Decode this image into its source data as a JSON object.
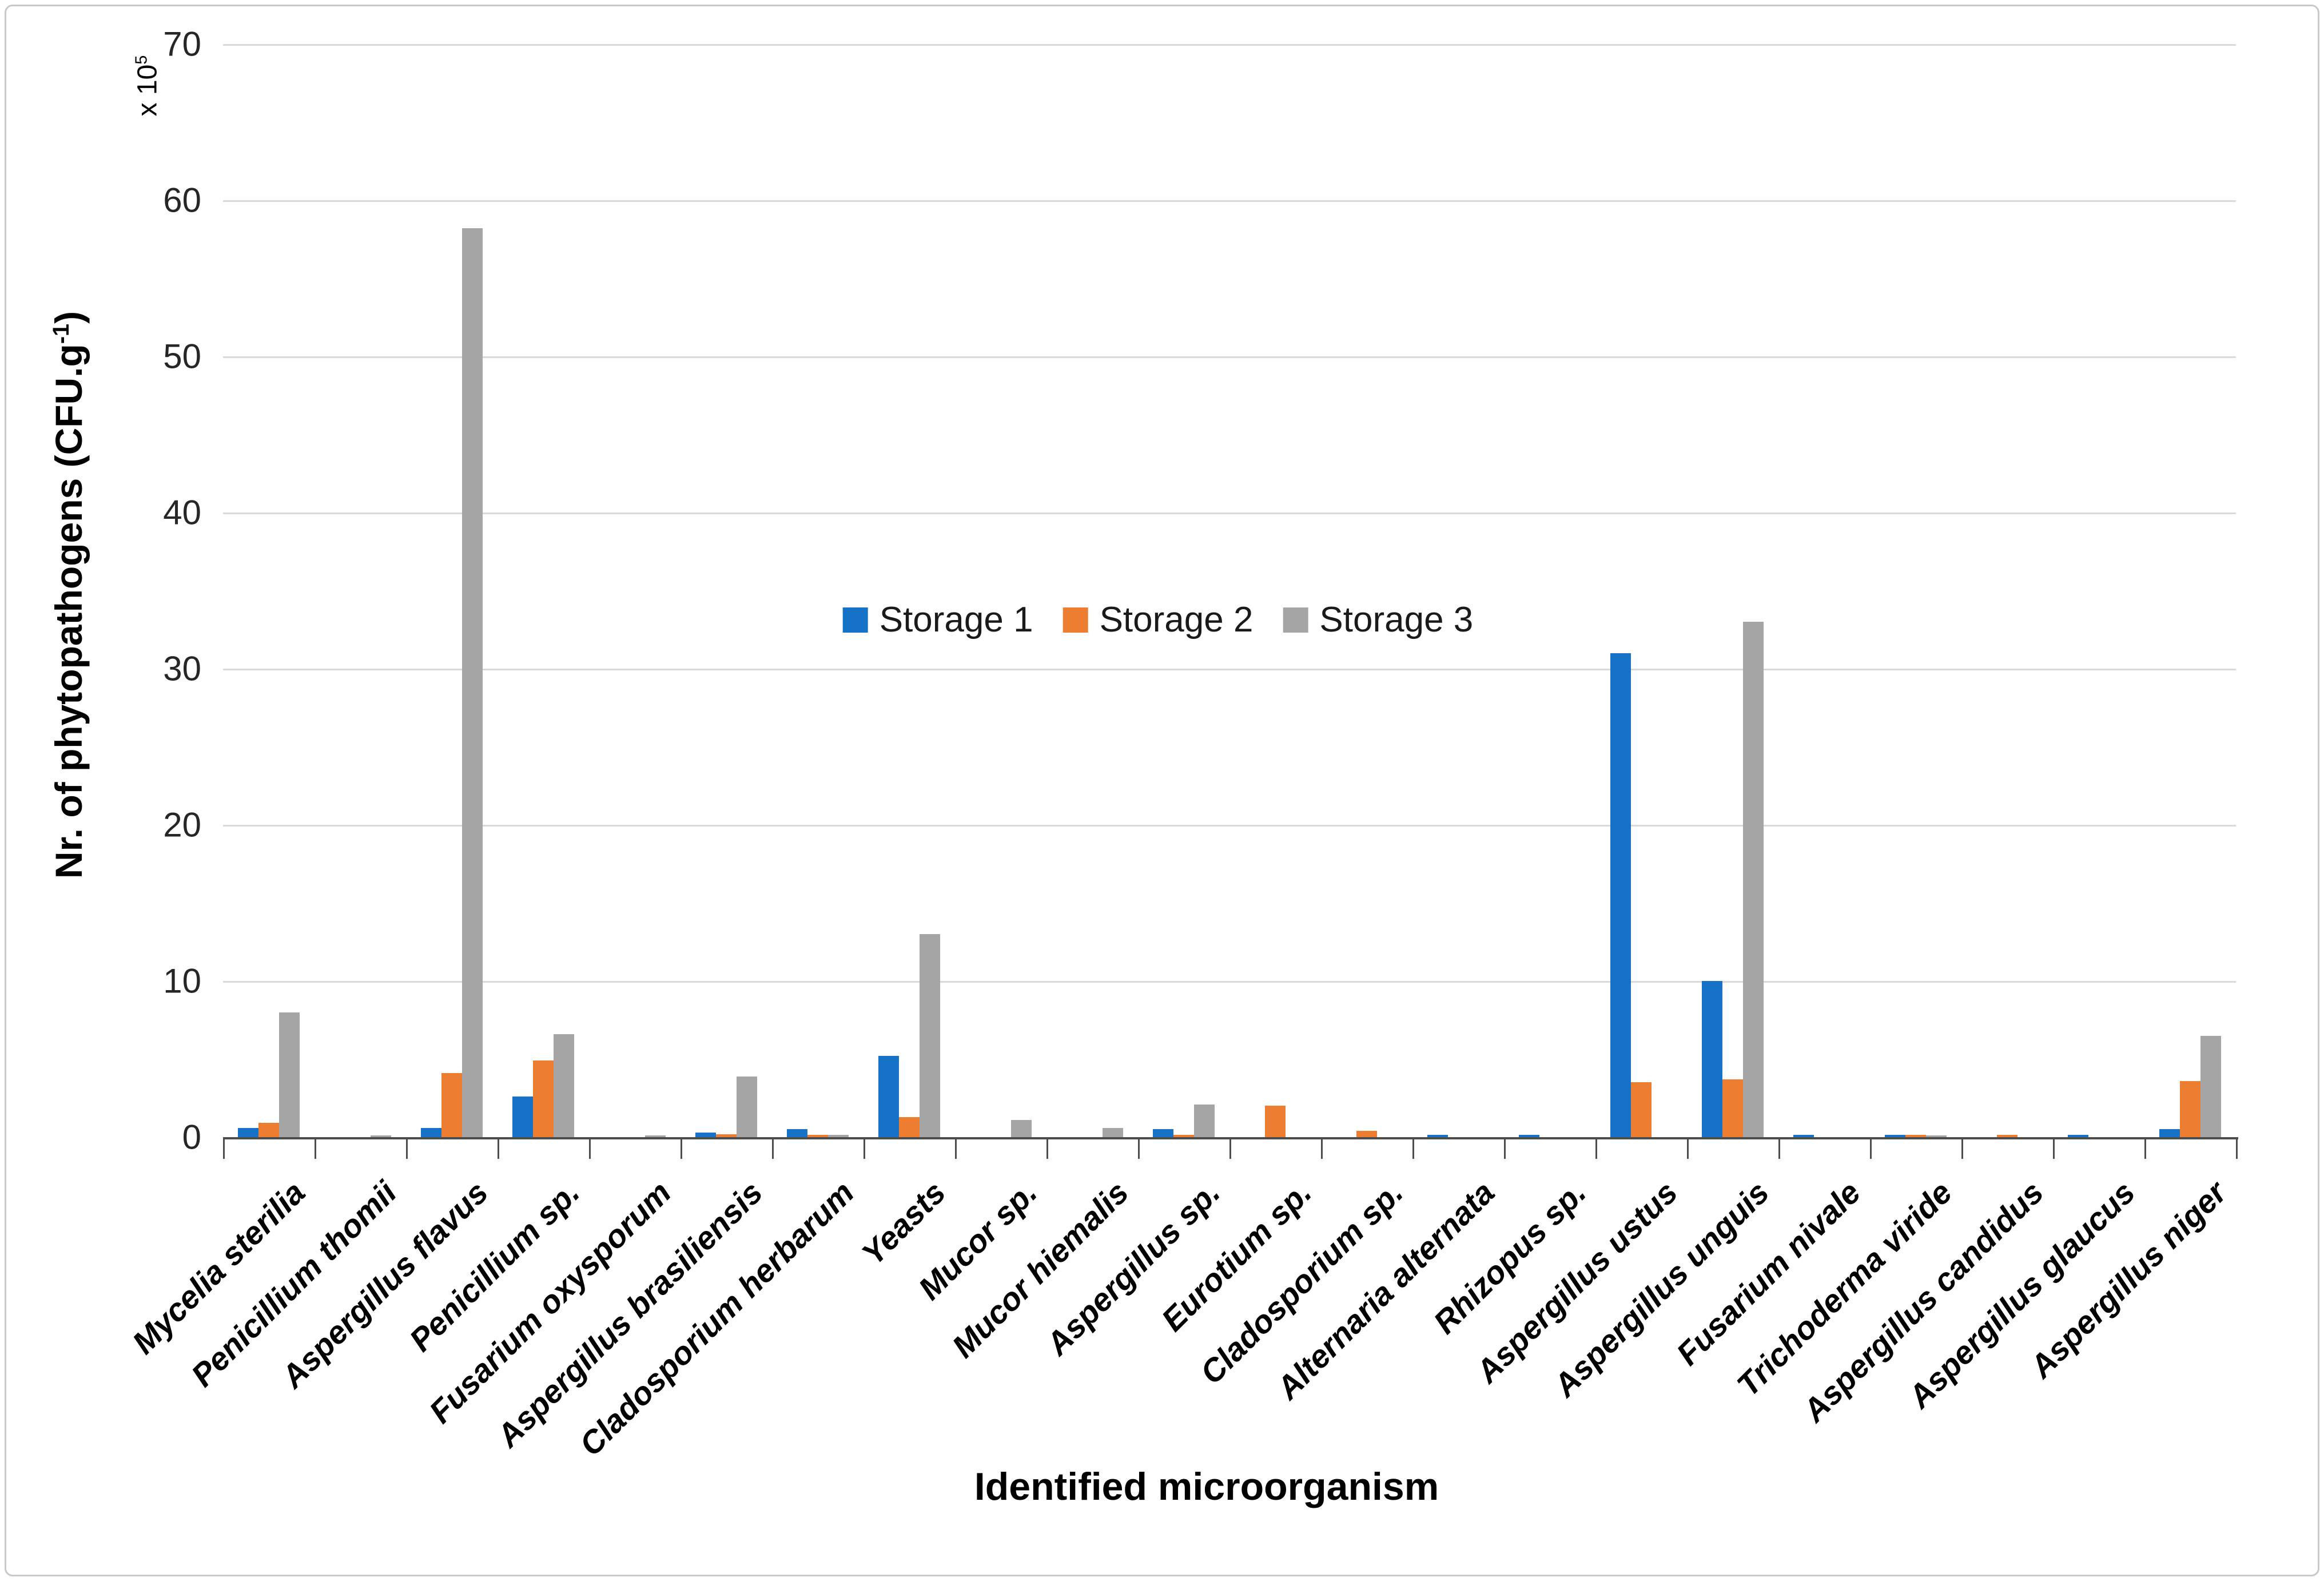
{
  "chart_data": {
    "type": "bar",
    "title": "",
    "xlabel": "Identified microorganism",
    "ylabel_parts": {
      "pre": "Nr. of phytopathogens (CFU.g",
      "sup": "-1",
      "post": ")"
    },
    "y_multiplier_parts": {
      "pre": "x 10",
      "sup": "5"
    },
    "ylim": [
      0,
      70
    ],
    "yticks": [
      0,
      10,
      20,
      30,
      40,
      50,
      60,
      70
    ],
    "grid": "horizontal gridlines on",
    "legend_position": "inside top center",
    "categories": [
      "Mycelia sterilia",
      "Penicillium thomii",
      "Aspergillus flavus",
      "Penicillium sp.",
      "Fusarium oxysporum",
      "Aspergillus brasiliensis",
      "Cladosporium herbarum",
      "Yeasts",
      "Mucor sp.",
      "Mucor hiemalis",
      "Aspergillus sp.",
      "Eurotium sp.",
      "Cladosporium sp.",
      "Alternaria alternata",
      "Rhizopus sp.",
      "Aspergillus ustus",
      "Aspergillus unguis",
      "Fusarium nivale",
      "Trichoderma viride",
      "Aspergillus candidus",
      "Aspergillus glaucus",
      "Aspergillus niger"
    ],
    "series": [
      {
        "name": "Storage 1",
        "color": "#1572C6",
        "values": [
          0.6,
          0,
          0.6,
          2.6,
          0,
          0.3,
          0.5,
          5.2,
          0,
          0,
          0.5,
          0,
          0,
          0.15,
          0.15,
          31,
          10,
          0.15,
          0.15,
          0,
          0.15,
          0.5
        ]
      },
      {
        "name": "Storage 2",
        "color": "#ED7D31",
        "values": [
          0.9,
          0,
          4.1,
          4.9,
          0,
          0.2,
          0.15,
          1.3,
          0,
          0,
          0.15,
          2.0,
          0.4,
          0,
          0,
          3.5,
          3.7,
          0,
          0.15,
          0.15,
          0,
          3.6
        ]
      },
      {
        "name": "Storage 3",
        "color": "#A5A5A5",
        "values": [
          8.0,
          0.1,
          58.2,
          6.6,
          0.1,
          3.9,
          0.15,
          13.0,
          1.1,
          0.6,
          2.1,
          0,
          0,
          0,
          0,
          0,
          33,
          0,
          0.1,
          0,
          0,
          6.5
        ]
      }
    ]
  }
}
